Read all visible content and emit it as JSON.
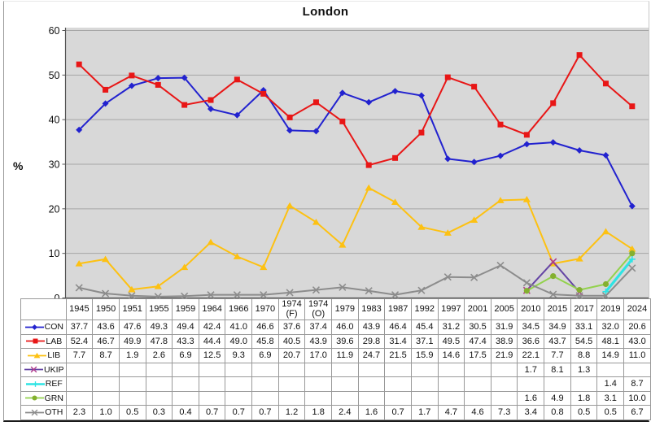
{
  "window": {
    "title": "London"
  },
  "chart_data": {
    "type": "line",
    "title": "London",
    "xlabel": "",
    "ylabel": "%",
    "ylim": [
      0,
      60
    ],
    "ytick_interval": 10,
    "grid": true,
    "legend_position": "table-left",
    "plot_bg": "#d8d8d8",
    "gridline_color": "#a6a6a6",
    "axis_color": "#555555",
    "categories": [
      "1945",
      "1950",
      "1951",
      "1955",
      "1959",
      "1964",
      "1966",
      "1970",
      "1974 (F)",
      "1974 (O)",
      "1979",
      "1983",
      "1987",
      "1992",
      "1997",
      "2001",
      "2005",
      "2010",
      "2015",
      "2017",
      "2019",
      "2024"
    ],
    "series": [
      {
        "name": "CON",
        "color": "#2222cf",
        "marker": "diamond",
        "values": [
          37.7,
          43.6,
          47.6,
          49.3,
          49.4,
          42.4,
          41.0,
          46.6,
          37.6,
          37.4,
          46.0,
          43.9,
          46.4,
          45.4,
          31.2,
          30.5,
          31.9,
          34.5,
          34.9,
          33.1,
          32.0,
          20.6
        ]
      },
      {
        "name": "LAB",
        "color": "#e81616",
        "marker": "square",
        "values": [
          52.4,
          46.7,
          49.9,
          47.8,
          43.3,
          44.4,
          49.0,
          45.8,
          40.5,
          43.9,
          39.6,
          29.8,
          31.4,
          37.1,
          49.5,
          47.4,
          38.9,
          36.6,
          43.7,
          54.5,
          48.1,
          43.0
        ]
      },
      {
        "name": "LIB",
        "color": "#fdc112",
        "marker": "triangle",
        "values": [
          7.7,
          8.7,
          1.9,
          2.6,
          6.9,
          12.5,
          9.3,
          6.9,
          20.7,
          17.0,
          11.9,
          24.7,
          21.5,
          15.9,
          14.6,
          17.5,
          21.9,
          22.1,
          7.7,
          8.8,
          14.9,
          11.0
        ]
      },
      {
        "name": "UKIP",
        "color": "#6444a4",
        "marker": "x",
        "marker_color": "#b03a8c",
        "values": [
          null,
          null,
          null,
          null,
          null,
          null,
          null,
          null,
          null,
          null,
          null,
          null,
          null,
          null,
          null,
          null,
          null,
          1.7,
          8.1,
          1.3,
          null,
          null
        ]
      },
      {
        "name": "REF",
        "color": "#2ee4e4",
        "marker": "plus",
        "line_width": 3.2,
        "values": [
          null,
          null,
          null,
          null,
          null,
          null,
          null,
          null,
          null,
          null,
          null,
          null,
          null,
          null,
          null,
          null,
          null,
          null,
          null,
          null,
          1.4,
          8.7
        ]
      },
      {
        "name": "GRN",
        "color": "#93d24d",
        "marker": "circle",
        "marker_color": "#84b02f",
        "values": [
          null,
          null,
          null,
          null,
          null,
          null,
          null,
          null,
          null,
          null,
          null,
          null,
          null,
          null,
          null,
          null,
          null,
          1.6,
          4.9,
          1.8,
          3.1,
          10.0
        ]
      },
      {
        "name": "OTH",
        "color": "#8c8c8c",
        "marker": "x",
        "values": [
          2.3,
          1.0,
          0.5,
          0.3,
          0.4,
          0.7,
          0.7,
          0.7,
          1.2,
          1.8,
          2.4,
          1.6,
          0.7,
          1.7,
          4.7,
          4.6,
          7.3,
          3.4,
          0.8,
          0.5,
          0.5,
          6.7
        ]
      }
    ]
  }
}
